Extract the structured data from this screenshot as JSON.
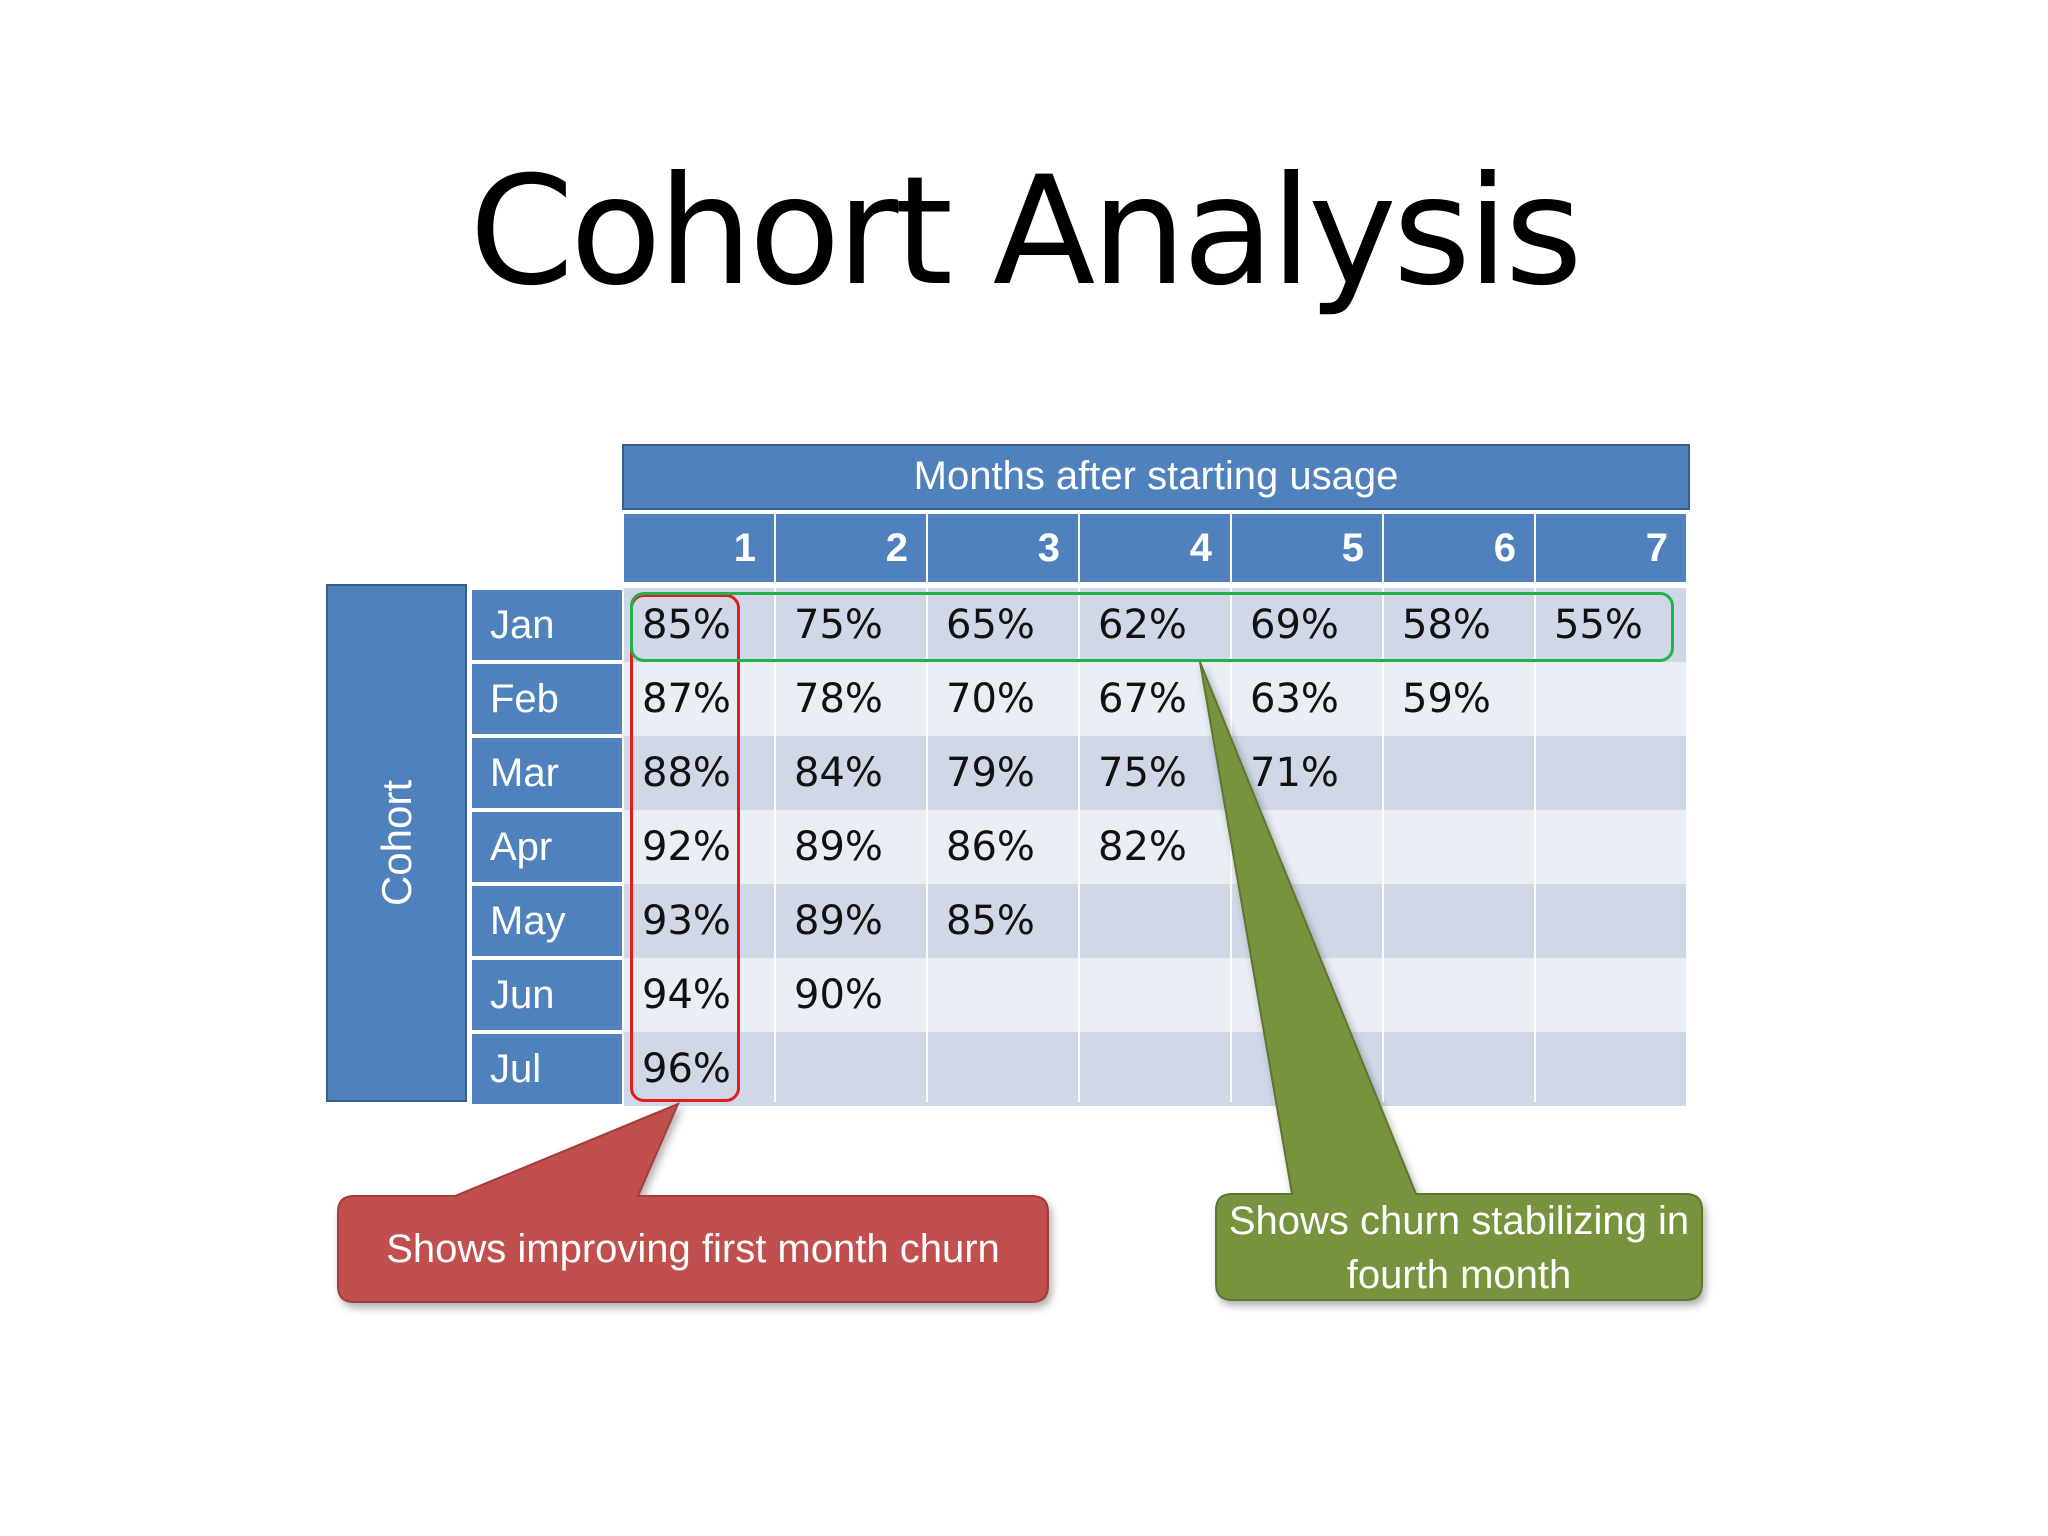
{
  "title": "Cohort Analysis",
  "chart_data": {
    "type": "table",
    "title": "Cohort Analysis",
    "column_header": "Months after starting usage",
    "row_header": "Cohort",
    "columns": [
      "1",
      "2",
      "3",
      "4",
      "5",
      "6",
      "7"
    ],
    "rows": [
      "Jan",
      "Feb",
      "Mar",
      "Apr",
      "May",
      "Jun",
      "Jul"
    ],
    "values": [
      [
        "85%",
        "75%",
        "65%",
        "62%",
        "69%",
        "58%",
        "55%"
      ],
      [
        "87%",
        "78%",
        "70%",
        "67%",
        "63%",
        "59%",
        ""
      ],
      [
        "88%",
        "84%",
        "79%",
        "75%",
        "71%",
        "",
        ""
      ],
      [
        "92%",
        "89%",
        "86%",
        "82%",
        "",
        "",
        ""
      ],
      [
        "93%",
        "89%",
        "85%",
        "",
        "",
        "",
        ""
      ],
      [
        "94%",
        "90%",
        "",
        "",
        "",
        "",
        ""
      ],
      [
        "96%",
        "",
        "",
        "",
        "",
        "",
        ""
      ]
    ],
    "annotations": [
      {
        "text": "Shows improving first month churn",
        "color": "#c0504d",
        "highlight": "column 1",
        "highlight_color": "#e31d1d"
      },
      {
        "text": "Shows churn stabilizing in fourth month",
        "color": "#77933c",
        "highlight": "row Jan",
        "highlight_color": "#22b14c"
      }
    ]
  },
  "colors": {
    "header_blue": "#4f81bd",
    "row_light": "#e9edf4",
    "row_dark": "#d0d8e8",
    "callout_red": "#c0504d",
    "callout_green": "#77933c"
  }
}
